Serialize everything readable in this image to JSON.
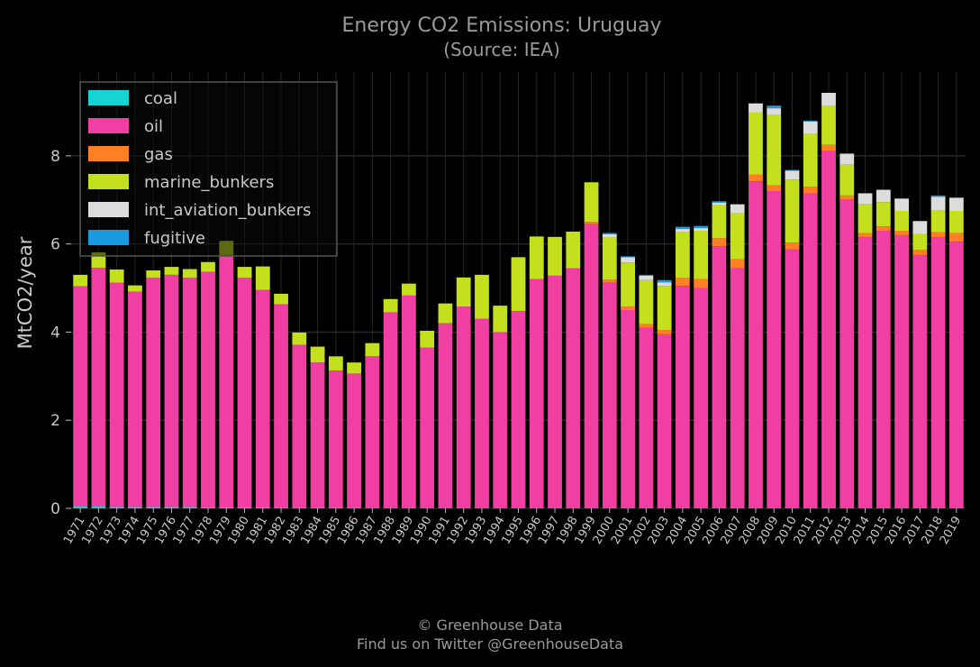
{
  "chart_data": {
    "type": "bar",
    "stacked": true,
    "title": "Energy CO2 Emissions: Uruguay",
    "subtitle": "(Source: IEA)",
    "xlabel": "",
    "ylabel": "MtCO2/year",
    "ylim": [
      0,
      9.9
    ],
    "yticks": [
      0,
      2,
      4,
      6,
      8
    ],
    "grid": true,
    "legend_position": "top-left",
    "categories": [
      "1971",
      "1972",
      "1973",
      "1974",
      "1975",
      "1976",
      "1977",
      "1978",
      "1979",
      "1980",
      "1981",
      "1982",
      "1983",
      "1984",
      "1985",
      "1986",
      "1987",
      "1988",
      "1989",
      "1990",
      "1991",
      "1992",
      "1993",
      "1994",
      "1995",
      "1996",
      "1997",
      "1998",
      "1999",
      "2000",
      "2001",
      "2002",
      "2003",
      "2004",
      "2005",
      "2006",
      "2007",
      "2008",
      "2009",
      "2010",
      "2011",
      "2012",
      "2013",
      "2014",
      "2015",
      "2016",
      "2017",
      "2018",
      "2019"
    ],
    "series": [
      {
        "name": "coal",
        "color": "#17d4d4",
        "values": [
          0.04,
          0.04,
          0.03,
          0.03,
          0.03,
          0.03,
          0.03,
          0.02,
          0.02,
          0.02,
          0.02,
          0.01,
          0.01,
          0.01,
          0.01,
          0.01,
          0.0,
          0.0,
          0.0,
          0.0,
          0.0,
          0.0,
          0.0,
          0.0,
          0.0,
          0.0,
          0.0,
          0.0,
          0.0,
          0.0,
          0.0,
          0.0,
          0.0,
          0.0,
          0.0,
          0.0,
          0.0,
          0.0,
          0.0,
          0.0,
          0.0,
          0.0,
          0.0,
          0.0,
          0.0,
          0.0,
          0.0,
          0.0,
          0.0
        ]
      },
      {
        "name": "oil",
        "color": "#f03ea2",
        "values": [
          5.0,
          5.42,
          5.09,
          4.89,
          5.2,
          5.27,
          5.2,
          5.35,
          5.73,
          5.21,
          4.94,
          4.62,
          3.7,
          3.3,
          3.12,
          3.05,
          3.45,
          4.45,
          4.83,
          3.65,
          4.2,
          4.58,
          4.3,
          4.0,
          4.48,
          5.2,
          5.28,
          5.45,
          6.45,
          5.12,
          4.5,
          4.1,
          3.95,
          5.05,
          5.0,
          5.95,
          5.45,
          7.42,
          7.2,
          5.88,
          7.15,
          8.12,
          7.0,
          6.15,
          6.3,
          6.2,
          5.75,
          6.15,
          6.05
        ]
      },
      {
        "name": "gas",
        "color": "#ff7f24",
        "values": [
          0,
          0,
          0,
          0,
          0,
          0,
          0,
          0,
          0,
          0,
          0,
          0,
          0,
          0,
          0,
          0,
          0,
          0,
          0,
          0,
          0,
          0,
          0,
          0,
          0,
          0,
          0,
          0,
          0.05,
          0.07,
          0.08,
          0.08,
          0.1,
          0.18,
          0.2,
          0.18,
          0.2,
          0.15,
          0.13,
          0.15,
          0.15,
          0.13,
          0.1,
          0.1,
          0.1,
          0.1,
          0.12,
          0.12,
          0.2
        ]
      },
      {
        "name": "marine_bunkers",
        "color": "#c4df1c",
        "values": [
          0.26,
          0.35,
          0.3,
          0.14,
          0.17,
          0.18,
          0.2,
          0.22,
          0.32,
          0.25,
          0.53,
          0.24,
          0.28,
          0.36,
          0.32,
          0.25,
          0.3,
          0.3,
          0.27,
          0.38,
          0.45,
          0.66,
          1.0,
          0.6,
          1.22,
          0.97,
          0.88,
          0.83,
          0.9,
          0.95,
          1.0,
          1.0,
          1.0,
          1.05,
          1.1,
          0.75,
          1.05,
          1.42,
          1.6,
          1.43,
          1.2,
          0.88,
          0.7,
          0.65,
          0.55,
          0.45,
          0.35,
          0.5,
          0.5
        ]
      },
      {
        "name": "int_aviation_bunkers",
        "color": "#dcdcdc",
        "values": [
          0,
          0,
          0,
          0,
          0,
          0,
          0,
          0,
          0,
          0,
          0,
          0,
          0,
          0,
          0,
          0,
          0,
          0,
          0,
          0,
          0,
          0,
          0,
          0,
          0,
          0,
          0,
          0,
          0,
          0.08,
          0.12,
          0.1,
          0.08,
          0.06,
          0.06,
          0.06,
          0.2,
          0.2,
          0.15,
          0.2,
          0.28,
          0.3,
          0.25,
          0.25,
          0.28,
          0.28,
          0.3,
          0.3,
          0.3
        ]
      },
      {
        "name": "fugitive",
        "color": "#1a9ae0",
        "values": [
          0,
          0,
          0,
          0,
          0,
          0,
          0,
          0,
          0,
          0,
          0,
          0,
          0,
          0,
          0,
          0,
          0,
          0,
          0,
          0,
          0,
          0,
          0,
          0,
          0,
          0,
          0,
          0,
          0,
          0.03,
          0.02,
          0.02,
          0.05,
          0.05,
          0.05,
          0.03,
          0.0,
          0.0,
          0.06,
          0.02,
          0.02,
          0.0,
          0.0,
          0.0,
          0.0,
          0.0,
          0.0,
          0.03,
          0.0
        ]
      }
    ]
  },
  "footer": {
    "line1": "© Greenhouse Data",
    "line2": "Find us on Twitter @GreenhouseData"
  }
}
